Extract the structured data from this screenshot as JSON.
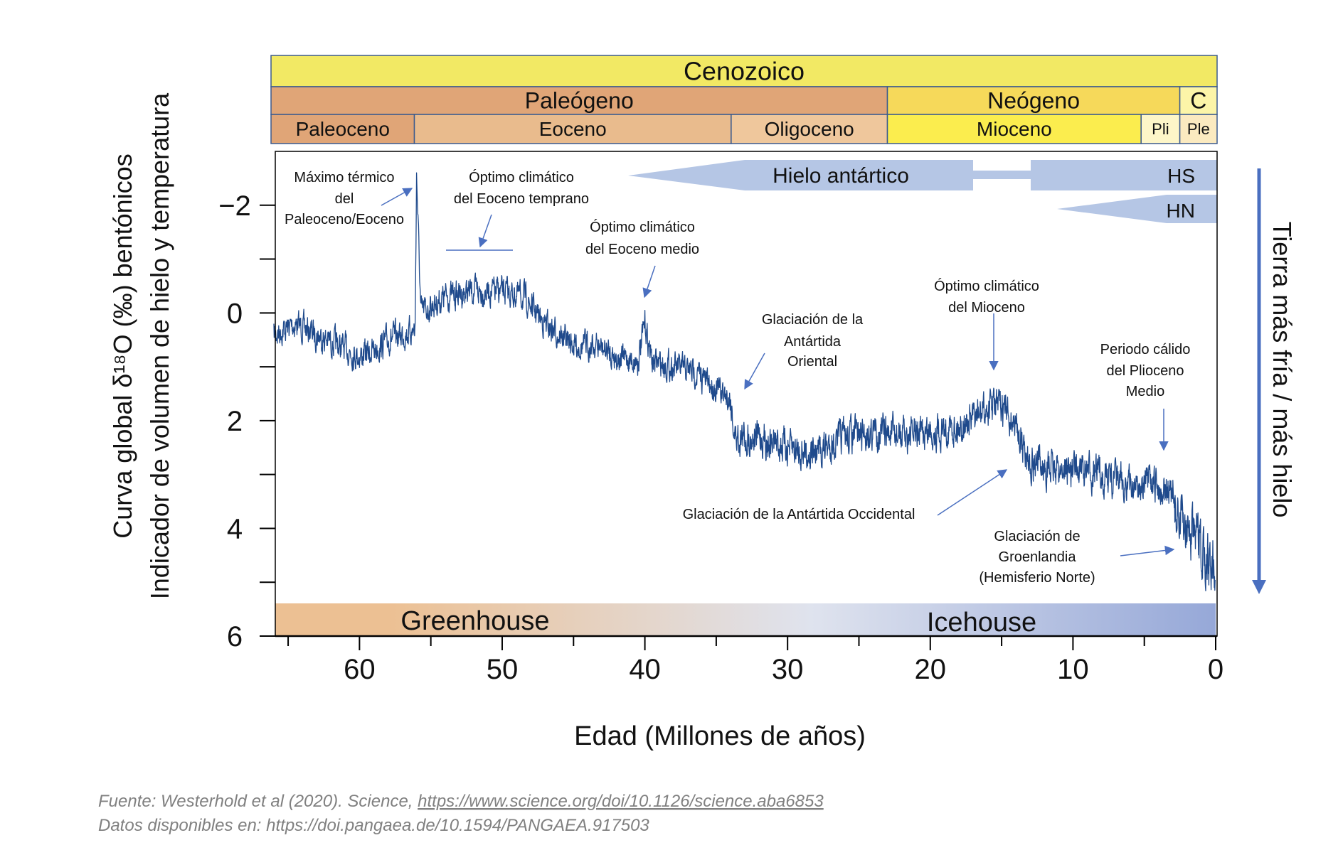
{
  "timeline": {
    "era": {
      "label": "Cenozoico",
      "from": 66,
      "to": 0,
      "color": "#f2e964"
    },
    "periods": [
      {
        "label": "Paleógeno",
        "from": 66,
        "to": 23,
        "color": "#e0a577"
      },
      {
        "label": "Neógeno",
        "from": 23,
        "to": 2.6,
        "color": "#f6d95a"
      },
      {
        "label": "C",
        "from": 2.6,
        "to": 0,
        "color": "#fcf5a8"
      }
    ],
    "epochs": [
      {
        "label": "Paleoceno",
        "from": 66,
        "to": 56,
        "color": "#e0a577"
      },
      {
        "label": "Eoceno",
        "from": 56,
        "to": 33.9,
        "color": "#e9bb8d"
      },
      {
        "label": "Oligoceno",
        "from": 33.9,
        "to": 23,
        "color": "#efc79c"
      },
      {
        "label": "Mioceno",
        "from": 23,
        "to": 5.3,
        "color": "#fbed4e"
      },
      {
        "label": "Pli",
        "from": 5.3,
        "to": 2.6,
        "color": "#fdf6c8"
      },
      {
        "label": "Ple",
        "from": 2.6,
        "to": 0,
        "color": "#fbeac0"
      }
    ]
  },
  "ice": {
    "south_label": "Hielo antártico",
    "south_short": "HS",
    "north_short": "HN",
    "color": "#b5c6e5"
  },
  "climate_states": {
    "left": "Greenhouse",
    "right": "Icehouse",
    "colors": [
      "#ecc093",
      "#dfe3ee",
      "#96a8d8"
    ]
  },
  "right_arrow_label": "Tierra más fría / más hielo",
  "annotations": {
    "petm": [
      "Máximo térmico",
      "del",
      "Paleoceno/Eoceno"
    ],
    "eeco": [
      "Óptimo climático",
      "del Eoceno temprano"
    ],
    "meco": [
      "Óptimo climático",
      "del Eoceno medio"
    ],
    "eag": [
      "Glaciación de la",
      "Antártida",
      "Oriental"
    ],
    "mco": [
      "Óptimo climático",
      "del Mioceno"
    ],
    "mpwp": [
      "Periodo cálido",
      "del Plioceno",
      "Medio"
    ],
    "wag": [
      "Glaciación de la Antártida Occidental"
    ],
    "ghg": [
      "Glaciación de",
      "Groenlandia",
      "(Hemisferio Norte)"
    ]
  },
  "footer": {
    "line1_prefix": "Fuente: Westerhold et al (2020). Science, ",
    "line1_link": "https://www.science.org/doi/10.1126/science.aba6853",
    "line2": "Datos disponibles en: https://doi.pangaea.de/10.1594/PANGAEA.917503"
  },
  "chart_data": {
    "type": "line",
    "xlabel": "Edad (Millones de años)",
    "ylabel_lines": [
      "Curva global δ¹⁸O (‰) bentónicos",
      "Indicador de volumen de hielo y temperatura"
    ],
    "xlim": [
      66,
      0
    ],
    "ylim": [
      -3,
      6
    ],
    "y_inverted": true,
    "xticks": [
      60,
      50,
      40,
      30,
      20,
      10,
      0
    ],
    "yticks": [
      -2,
      0,
      2,
      4,
      6
    ],
    "yticklabels": [
      "−2",
      "0",
      "2",
      "4",
      "6"
    ],
    "grid": false,
    "line_color": "#1f4a8c",
    "series": [
      {
        "x": [
          66,
          64.5,
          63,
          61.5,
          60,
          59,
          58,
          57,
          56.1,
          56.0,
          55.7,
          54,
          52,
          50,
          48.5,
          47,
          45,
          43.5,
          42,
          40.5,
          40.0,
          39.5,
          38,
          36.5,
          35,
          34,
          33.7,
          32,
          30,
          28,
          26,
          24,
          22,
          20,
          18,
          16.5,
          15.5,
          14.5,
          13.8,
          13.2,
          12,
          10,
          8,
          6,
          4.5,
          3.3,
          2.6,
          1.5,
          0.8,
          0
        ],
        "y": [
          0.4,
          0.2,
          0.4,
          0.6,
          0.8,
          0.7,
          0.5,
          0.4,
          0.3,
          -2.6,
          0.0,
          -0.3,
          -0.4,
          -0.4,
          -0.3,
          0.2,
          0.6,
          0.6,
          0.8,
          0.9,
          0.2,
          0.9,
          1.0,
          1.1,
          1.4,
          1.6,
          2.3,
          2.3,
          2.5,
          2.6,
          2.3,
          2.2,
          2.3,
          2.2,
          2.1,
          1.9,
          1.7,
          1.9,
          2.2,
          2.7,
          2.9,
          2.9,
          3.0,
          3.2,
          3.2,
          3.3,
          3.8,
          4.2,
          4.5,
          4.6
        ]
      }
    ]
  }
}
